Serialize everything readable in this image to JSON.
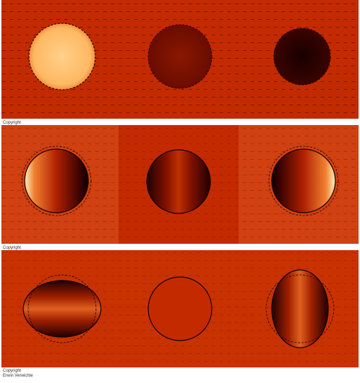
{
  "captions": {
    "row1": "Copyright",
    "row2": "Copyright",
    "row3": "Copyright",
    "author": "Erwin Verwichte"
  }
}
